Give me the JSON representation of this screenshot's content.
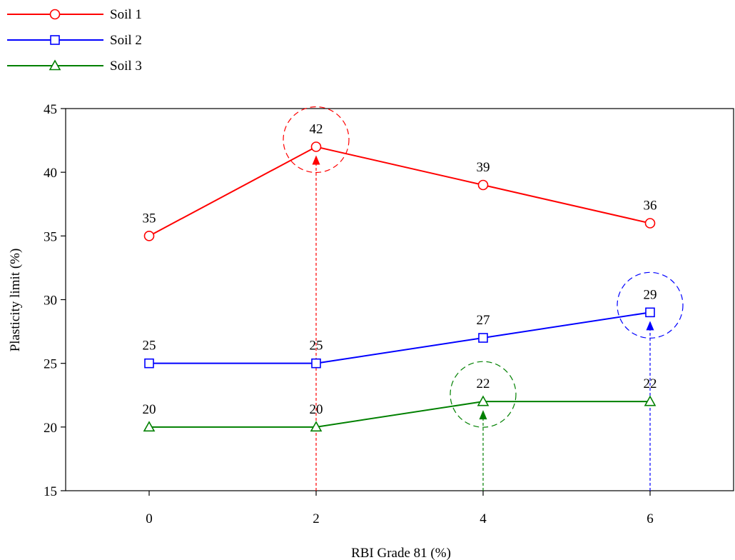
{
  "chart_data": {
    "type": "line",
    "title": "",
    "xlabel": "RBI Grade 81 (%)",
    "ylabel": "Plasticity limit (%)",
    "x": [
      0,
      2,
      4,
      6
    ],
    "xticks": [
      "0",
      "2",
      "4",
      "6"
    ],
    "xlim": [
      -1,
      7
    ],
    "ylim": [
      15,
      45
    ],
    "yticks": [
      "15",
      "20",
      "25",
      "30",
      "35",
      "40",
      "45"
    ],
    "grid": false,
    "legend_position": "top-left",
    "series": [
      {
        "name": "Soil 1",
        "values": [
          35,
          42,
          39,
          36
        ],
        "labels": [
          "35",
          "42",
          "39",
          "36"
        ],
        "color": "#ff0000",
        "marker": "circle",
        "optimum_x": 2
      },
      {
        "name": "Soil 2",
        "values": [
          25,
          25,
          27,
          29
        ],
        "labels": [
          "25",
          "25",
          "27",
          "29"
        ],
        "color": "#0000ff",
        "marker": "square",
        "optimum_x": 6
      },
      {
        "name": "Soil 3",
        "values": [
          20,
          20,
          22,
          22
        ],
        "labels": [
          "20",
          "20",
          "22",
          "22"
        ],
        "color": "#008000",
        "marker": "triangle",
        "optimum_x": 4
      }
    ]
  }
}
